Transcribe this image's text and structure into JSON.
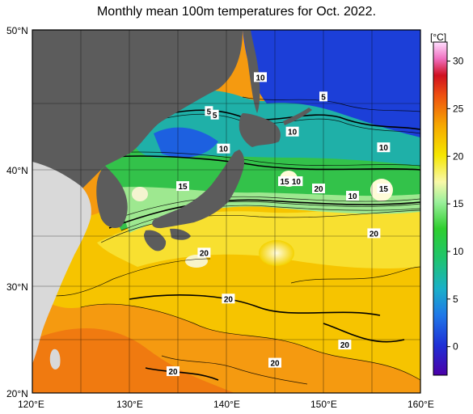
{
  "title": "Monthly mean 100m temperatures for Oct. 2022.",
  "colorbar": {
    "unit_label": "[°C]",
    "ticks": [
      "30",
      "25",
      "20",
      "15",
      "10",
      "5",
      "0"
    ],
    "range": [
      -3,
      32
    ]
  },
  "axes": {
    "x_ticks": [
      "120°E",
      "130°E",
      "140°E",
      "150°E",
      "160°E"
    ],
    "y_ticks": [
      "50°N",
      "40°N",
      "30°N",
      "20°N"
    ]
  },
  "contour_labels": [
    {
      "text": "5",
      "lon": 138.2,
      "lat": 43.3
    },
    {
      "text": "5",
      "lon": 138.8,
      "lat": 43.0
    },
    {
      "text": "10",
      "lon": 143.5,
      "lat": 46.1
    },
    {
      "text": "5",
      "lon": 150.0,
      "lat": 44.5
    },
    {
      "text": "10",
      "lon": 146.8,
      "lat": 41.6
    },
    {
      "text": "10",
      "lon": 139.7,
      "lat": 40.2
    },
    {
      "text": "10",
      "lon": 156.2,
      "lat": 40.3
    },
    {
      "text": "15",
      "lon": 135.5,
      "lat": 37.1
    },
    {
      "text": "15",
      "lon": 146.0,
      "lat": 37.5
    },
    {
      "text": "10",
      "lon": 147.2,
      "lat": 37.5
    },
    {
      "text": "20",
      "lon": 149.5,
      "lat": 36.9
    },
    {
      "text": "15",
      "lon": 156.2,
      "lat": 36.9
    },
    {
      "text": "10",
      "lon": 153.0,
      "lat": 36.3
    },
    {
      "text": "20",
      "lon": 155.2,
      "lat": 33.2
    },
    {
      "text": "20",
      "lon": 137.7,
      "lat": 31.6
    },
    {
      "text": "20",
      "lon": 140.2,
      "lat": 27.8
    },
    {
      "text": "20",
      "lon": 152.2,
      "lat": 24.0
    },
    {
      "text": "20",
      "lon": 145.0,
      "lat": 22.5
    },
    {
      "text": "20",
      "lon": 134.5,
      "lat": 21.8
    }
  ]
}
